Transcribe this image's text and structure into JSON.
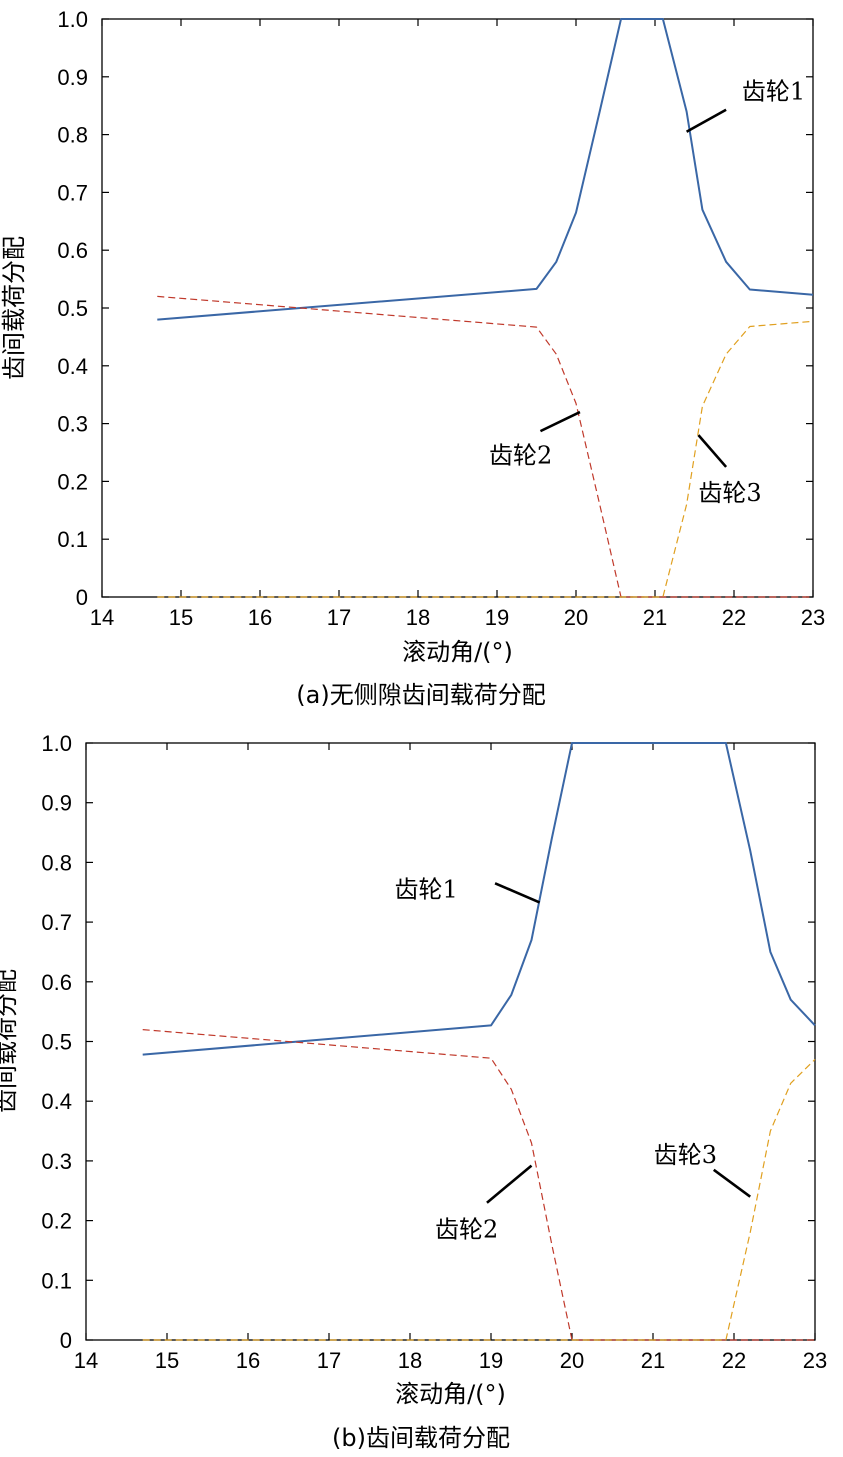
{
  "colors": {
    "gear1": "#3a67a6",
    "gear2": "#c0392b",
    "gear3": "#e0a020"
  },
  "chart_data": [
    {
      "type": "line",
      "caption": "(a)无侧隙齿间载荷分配",
      "xlabel": "滚动角/(°)",
      "ylabel": "齿间载荷分配",
      "xlim": [
        14,
        23
      ],
      "ylim": [
        0,
        1
      ],
      "xticks": [
        "14",
        "15",
        "16",
        "17",
        "18",
        "19",
        "20",
        "21",
        "22",
        "23"
      ],
      "yticks": [
        "0",
        "0.1",
        "0.2",
        "0.3",
        "0.4",
        "0.5",
        "0.6",
        "0.7",
        "0.8",
        "0.9",
        "1.0"
      ],
      "grid": false,
      "series": [
        {
          "name": "齿轮1",
          "style": "solid",
          "color": "#3a67a6",
          "x": [
            14.7,
            19.5,
            19.75,
            20.0,
            20.3,
            20.57,
            20.8,
            21.1,
            21.4,
            21.6,
            21.9,
            22.2,
            23.0
          ],
          "y": [
            0.48,
            0.533,
            0.58,
            0.665,
            0.84,
            1.0,
            1.0,
            1.0,
            0.84,
            0.67,
            0.58,
            0.532,
            0.523
          ]
        },
        {
          "name": "齿轮2",
          "style": "dashed",
          "color": "#c0392b",
          "x": [
            14.7,
            19.5,
            19.75,
            20.0,
            20.3,
            20.57,
            23.0
          ],
          "y": [
            0.52,
            0.467,
            0.42,
            0.335,
            0.16,
            0.0,
            0.0
          ]
        },
        {
          "name": "齿轮3",
          "style": "dashed",
          "color": "#e0a020",
          "x": [
            14.7,
            21.1,
            21.4,
            21.6,
            21.9,
            22.2,
            23.0
          ],
          "y": [
            0.0,
            0.0,
            0.16,
            0.33,
            0.42,
            0.468,
            0.477
          ]
        }
      ],
      "annotations": [
        {
          "text": "齿轮1",
          "x": 22.5,
          "y": 0.875,
          "lx1": 21.9,
          "ly1": 0.843,
          "lx2": 21.4,
          "ly2": 0.805
        },
        {
          "text": "齿轮2",
          "x": 19.3,
          "y": 0.245,
          "lx1": 19.55,
          "ly1": 0.287,
          "lx2": 20.05,
          "ly2": 0.32
        },
        {
          "text": "齿轮3",
          "x": 21.95,
          "y": 0.18,
          "lx1": 21.9,
          "ly1": 0.225,
          "lx2": 21.55,
          "ly2": 0.28
        }
      ]
    },
    {
      "type": "line",
      "caption": "(b)齿间载荷分配",
      "xlabel": "滚动角/(°)",
      "ylabel": "齿间载荷分配",
      "xlim": [
        14,
        23
      ],
      "ylim": [
        0,
        1
      ],
      "xticks": [
        "14",
        "15",
        "16",
        "17",
        "18",
        "19",
        "20",
        "21",
        "22",
        "23"
      ],
      "yticks": [
        "0",
        "0.1",
        "0.2",
        "0.3",
        "0.4",
        "0.5",
        "0.6",
        "0.7",
        "0.8",
        "0.9",
        "1.0"
      ],
      "grid": false,
      "series": [
        {
          "name": "齿轮1",
          "style": "solid",
          "color": "#3a67a6",
          "x": [
            14.7,
            19.0,
            19.25,
            19.5,
            19.75,
            20.0,
            21.9,
            22.2,
            22.45,
            22.7,
            23.0
          ],
          "y": [
            0.478,
            0.527,
            0.578,
            0.67,
            0.84,
            1.0,
            1.0,
            0.82,
            0.65,
            0.57,
            0.527
          ]
        },
        {
          "name": "齿轮2",
          "style": "dashed",
          "color": "#c0392b",
          "x": [
            14.7,
            19.0,
            19.25,
            19.5,
            19.75,
            20.0,
            23.0
          ],
          "y": [
            0.52,
            0.472,
            0.42,
            0.33,
            0.16,
            0.0,
            0.0
          ]
        },
        {
          "name": "齿轮3",
          "style": "dashed",
          "color": "#e0a020",
          "x": [
            14.7,
            21.9,
            22.2,
            22.45,
            22.7,
            23.0
          ],
          "y": [
            0.0,
            0.0,
            0.18,
            0.35,
            0.43,
            0.47
          ]
        }
      ],
      "annotations": [
        {
          "text": "齿轮1",
          "x": 18.2,
          "y": 0.755,
          "lx1": 19.05,
          "ly1": 0.765,
          "lx2": 19.6,
          "ly2": 0.733
        },
        {
          "text": "齿轮2",
          "x": 18.7,
          "y": 0.185,
          "lx1": 18.95,
          "ly1": 0.23,
          "lx2": 19.5,
          "ly2": 0.292
        },
        {
          "text": "齿轮3",
          "x": 21.4,
          "y": 0.31,
          "lx1": 21.75,
          "ly1": 0.285,
          "lx2": 22.2,
          "ly2": 0.24
        }
      ]
    }
  ]
}
